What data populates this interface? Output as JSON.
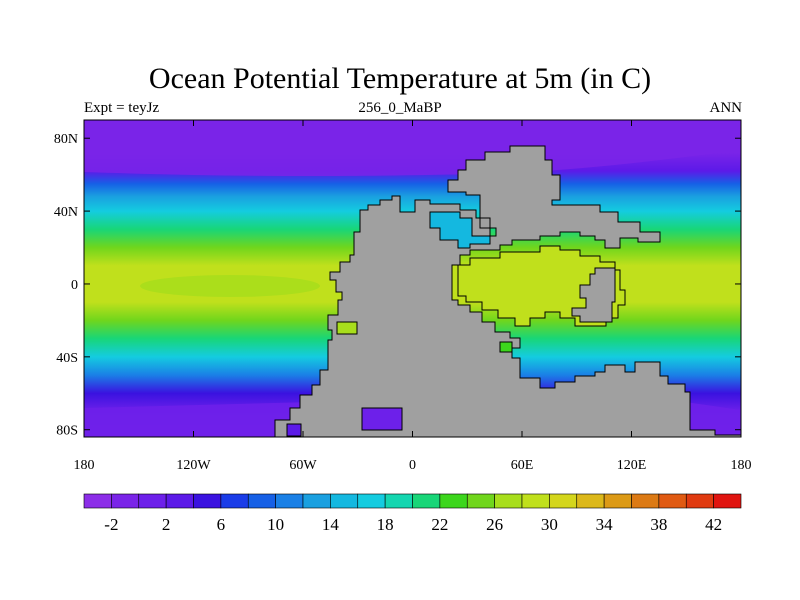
{
  "title": "Ocean Potential Temperature at 5m (in C)",
  "subtitle_left": "Expt = teyJz",
  "subtitle_center": "256_0_MaBP",
  "subtitle_right": "ANN",
  "land_color": "#a0a0a0",
  "y_ticks": [
    {
      "value": 80,
      "label": "80N"
    },
    {
      "value": 40,
      "label": "40N"
    },
    {
      "value": 0,
      "label": "0"
    },
    {
      "value": -40,
      "label": "40S"
    },
    {
      "value": -80,
      "label": "80S"
    }
  ],
  "x_ticks": [
    {
      "value": -180,
      "label": "180"
    },
    {
      "value": -120,
      "label": "120W"
    },
    {
      "value": -60,
      "label": "60W"
    },
    {
      "value": 0,
      "label": "0"
    },
    {
      "value": 60,
      "label": "60E"
    },
    {
      "value": 120,
      "label": "120E"
    },
    {
      "value": 180,
      "label": "180"
    }
  ],
  "colorbar": {
    "colors": [
      "#8c2ee8",
      "#7a24e8",
      "#6d20ea",
      "#5c1ae8",
      "#3a12e0",
      "#1a3ce8",
      "#1660e6",
      "#1a80e6",
      "#1aa0e0",
      "#14b8e0",
      "#14cce0",
      "#14d6b0",
      "#18d678",
      "#3cd61c",
      "#70d61c",
      "#a8de1c",
      "#c0e01c",
      "#d4d61c",
      "#dcb81a",
      "#dc9a16",
      "#dc7a14",
      "#e05a12",
      "#e03a10",
      "#e01410"
    ],
    "labels": [
      "-2",
      "2",
      "6",
      "10",
      "14",
      "18",
      "22",
      "26",
      "30",
      "34",
      "38",
      "42"
    ]
  },
  "temperature_bands": [
    {
      "lat": 90,
      "temp": -1.5
    },
    {
      "lat": 72,
      "temp": -1.0
    },
    {
      "lat": 62,
      "temp": 3
    },
    {
      "lat": 55,
      "temp": 8
    },
    {
      "lat": 48,
      "temp": 13
    },
    {
      "lat": 40,
      "temp": 17
    },
    {
      "lat": 30,
      "temp": 21
    },
    {
      "lat": 20,
      "temp": 25
    },
    {
      "lat": 10,
      "temp": 28
    },
    {
      "lat": 0,
      "temp": 29
    },
    {
      "lat": -10,
      "temp": 28
    },
    {
      "lat": -20,
      "temp": 25
    },
    {
      "lat": -30,
      "temp": 20
    },
    {
      "lat": -40,
      "temp": 16
    },
    {
      "lat": -50,
      "temp": 11
    },
    {
      "lat": -60,
      "temp": 5
    },
    {
      "lat": -70,
      "temp": 0
    },
    {
      "lat": -80,
      "temp": -2
    },
    {
      "lat": -84,
      "temp": -2
    }
  ]
}
